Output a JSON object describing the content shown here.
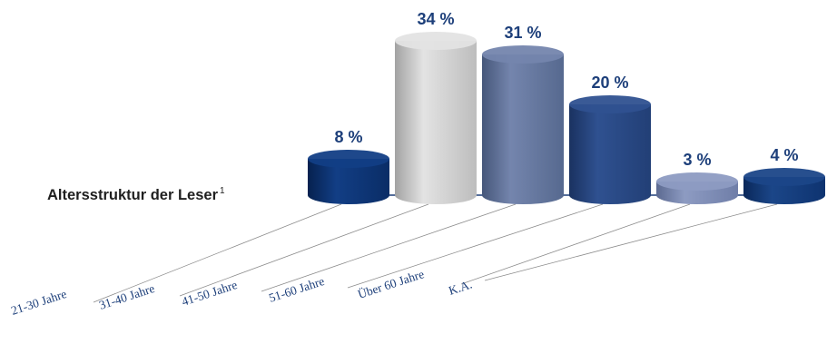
{
  "chart_data": {
    "type": "bar",
    "title": "Altersstruktur der Leser",
    "title_sup": "1",
    "categories": [
      "21-30 Jahre",
      "31-40 Jahre",
      "41-50 Jahre",
      "51-60 Jahre",
      "Über 60 Jahre",
      "K.A."
    ],
    "values": [
      8,
      34,
      31,
      20,
      3,
      4
    ],
    "value_labels": [
      "8 %",
      "34 %",
      "31 %",
      "20 %",
      "3 %",
      "4 %"
    ],
    "unit": "%",
    "ylim": [
      0,
      34
    ],
    "grid": false,
    "legend": "none",
    "colors": {
      "bars": [
        [
          "#0a2d66",
          "#123e85",
          "#06214f"
        ],
        [
          "#bdbdbd",
          "#e3e3e3",
          "#a2a2a2"
        ],
        [
          "#56698f",
          "#7485ad",
          "#46577a"
        ],
        [
          "#223f76",
          "#2f5190",
          "#1a3260"
        ],
        [
          "#6f7ea8",
          "#8d9bc2",
          "#5c6a91"
        ],
        [
          "#0e3370",
          "#1b4688",
          "#0a285a"
        ]
      ],
      "value_text": "#1d3f7a",
      "baseline": "#1d3f7a",
      "leader_lines": "#8c8c8c"
    }
  }
}
